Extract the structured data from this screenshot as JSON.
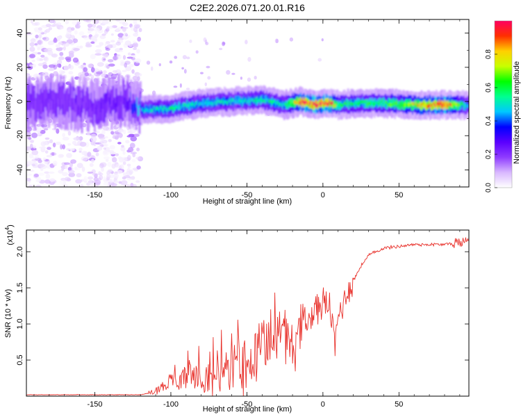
{
  "title": "C2E2.2026.071.20.01.R16",
  "colors": {
    "snr_line": "#e8302a",
    "colormap": [
      "#ffffff",
      "#d9b8ff",
      "#8f3cff",
      "#5a00ff",
      "#0000ff",
      "#00c8ff",
      "#00ff90",
      "#00ff00",
      "#c8ff00",
      "#ffd000",
      "#ff3000",
      "#ff0060"
    ]
  },
  "chart_data": [
    {
      "type": "heatmap",
      "xlabel": "Height of straight line (km)",
      "ylabel": "Frequency (Hz)",
      "xlim": [
        -195,
        96
      ],
      "ylim": [
        -50,
        48
      ],
      "x_ticks": [
        "-150",
        "-100",
        "-50",
        "0",
        "50"
      ],
      "x_tick_values": [
        -150,
        -100,
        -50,
        0,
        50
      ],
      "y_ticks": [
        "40",
        "20",
        "0",
        "-20",
        "-40"
      ],
      "y_tick_values": [
        40,
        20,
        0,
        -20,
        -40
      ],
      "ridge": {
        "x": [
          -195,
          -170,
          -150,
          -130,
          -120,
          -100,
          -80,
          -60,
          -40,
          -25,
          -15,
          -5,
          5,
          10,
          20,
          40,
          60,
          80,
          96
        ],
        "center_freq": [
          -1,
          0,
          -3,
          1,
          -5,
          -4,
          -1,
          0,
          1,
          -2,
          0,
          -2,
          -1,
          -2,
          -1,
          -1,
          -2,
          -2,
          -2
        ],
        "amplitude": [
          0.2,
          0.22,
          0.22,
          0.24,
          0.45,
          0.55,
          0.5,
          0.5,
          0.55,
          0.5,
          0.9,
          0.95,
          0.95,
          0.6,
          0.55,
          0.6,
          0.75,
          0.95,
          0.4
        ]
      },
      "noise_region_x": [
        -195,
        -120
      ],
      "colorbar": {
        "label": "Normalized spectral amplitude",
        "range": [
          0.0,
          1.0
        ],
        "ticks": [
          "0.0",
          "0.2",
          "0.4",
          "0.6",
          "0.8"
        ],
        "tick_values": [
          0.0,
          0.2,
          0.4,
          0.6,
          0.8
        ]
      }
    },
    {
      "type": "line",
      "xlabel": "Height of straight line (km)",
      "ylabel": "SNR (10 * v/v)",
      "yscale_label": "(x10",
      "yscale_exp": "4",
      "xlim": [
        -195,
        96
      ],
      "ylim": [
        0,
        2.3
      ],
      "x_ticks": [
        "-150",
        "-100",
        "-50",
        "0",
        "50"
      ],
      "x_tick_values": [
        -150,
        -100,
        -50,
        0,
        50
      ],
      "y_ticks": [
        "2.0",
        "1.5",
        "1.0",
        "0.5"
      ],
      "y_tick_values": [
        2.0,
        1.5,
        1.0,
        0.5
      ],
      "series": [
        {
          "x": [
            -195,
            -120,
            -112,
            -105,
            -100,
            -90,
            -80,
            -70,
            -60,
            -50,
            -45,
            -40,
            -35,
            -30,
            -25,
            -20,
            -15,
            -12,
            -10,
            -5,
            0,
            5,
            8,
            10,
            15,
            20,
            25,
            30,
            40,
            60,
            80,
            96
          ],
          "y": [
            0.02,
            0.02,
            0.05,
            0.15,
            0.2,
            0.25,
            0.35,
            0.3,
            0.35,
            0.45,
            0.55,
            0.65,
            0.7,
            0.75,
            0.8,
            0.7,
            0.9,
            1.1,
            1.0,
            1.2,
            1.3,
            1.2,
            0.7,
            1.1,
            1.4,
            1.6,
            1.8,
            1.95,
            2.05,
            2.1,
            2.1,
            2.15
          ]
        }
      ]
    }
  ]
}
